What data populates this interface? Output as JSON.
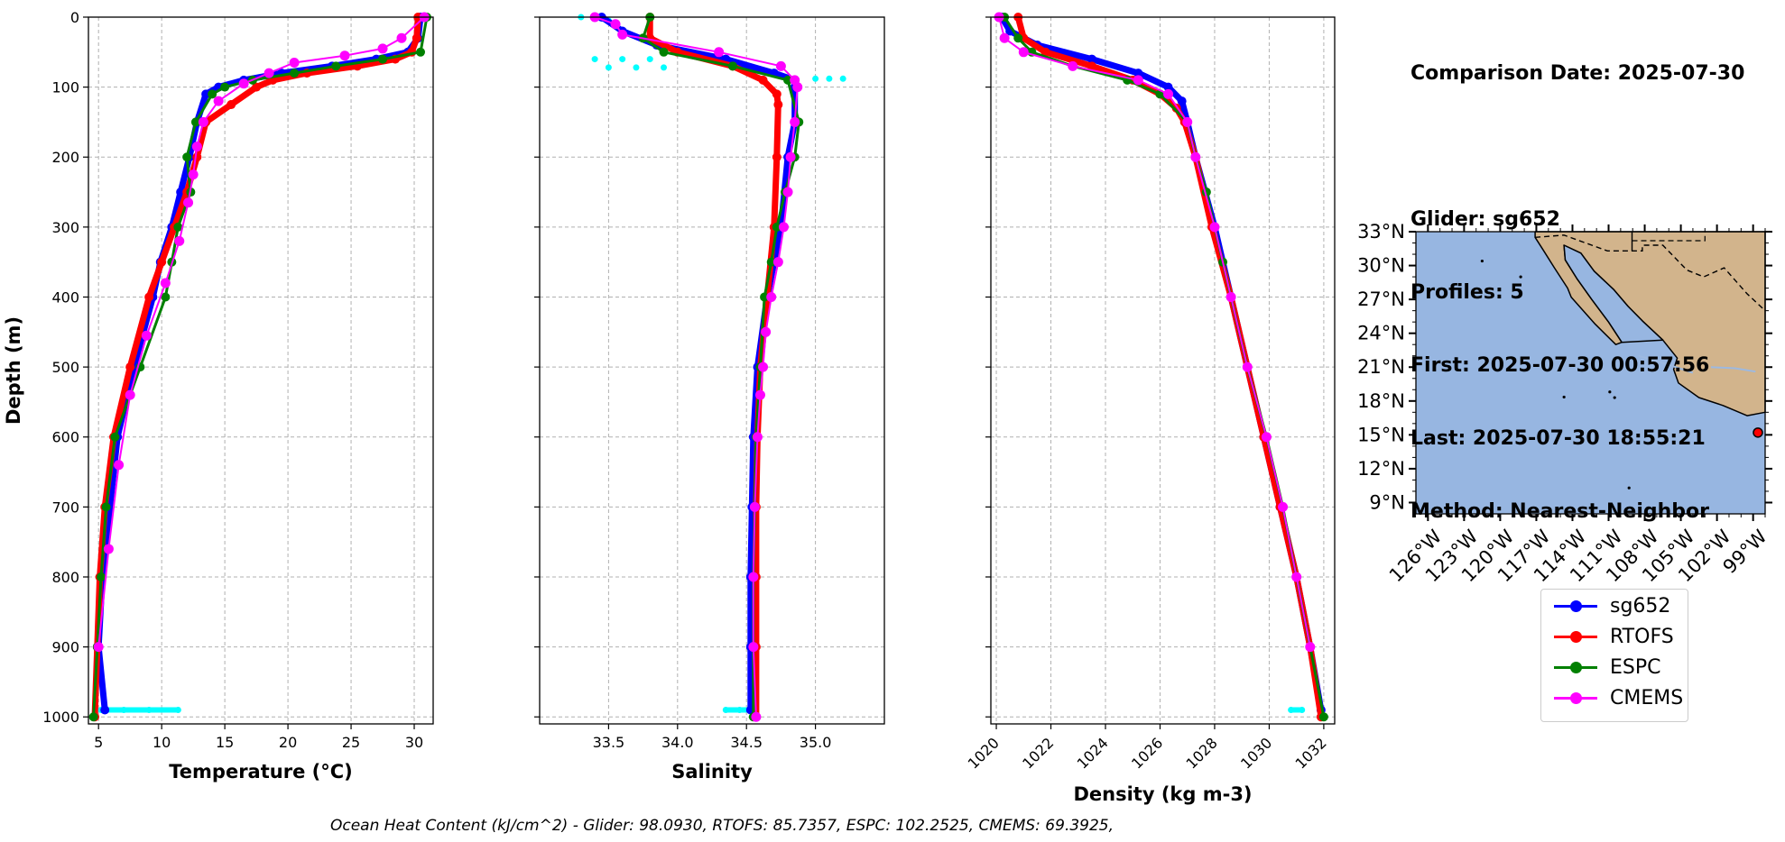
{
  "info": {
    "line1": "Comparison Date: 2025-07-30",
    "line2": "Glider: sg652",
    "line3": "Profiles: 5",
    "line4": "First: 2025-07-30 00:57:56",
    "line5": "Last: 2025-07-30 18:55:21",
    "line6": "Method: Nearest-Neighbor"
  },
  "caption": "Ocean Heat Content (kJ/cm^2) - Glider: 98.0930,  RTOFS: 85.7357,  ESPC: 102.2525,  CMEMS: 69.3925,",
  "legend": [
    {
      "name": "sg652",
      "color": "#0000ff"
    },
    {
      "name": "RTOFS",
      "color": "#ff0000"
    },
    {
      "name": "ESPC",
      "color": "#008000"
    },
    {
      "name": "CMEMS",
      "color": "#ff00ff"
    }
  ],
  "colors": {
    "glider_raw": "#00ffff",
    "ocean": "#97b6e1",
    "land": "#d2b48c"
  },
  "chart_data": [
    {
      "type": "line",
      "xlabel": "Temperature (°C)",
      "ylabel": "Depth (m)",
      "xlim": [
        4.2,
        31.5
      ],
      "ylim": [
        1010,
        0
      ],
      "xticks": [
        5,
        10,
        15,
        20,
        25,
        30
      ],
      "yticks": [
        0,
        100,
        200,
        300,
        400,
        500,
        600,
        700,
        800,
        900,
        1000
      ],
      "grid": true,
      "raw_points": [
        [
          5.2,
          990
        ],
        [
          7,
          990
        ],
        [
          9,
          990
        ],
        [
          11.3,
          990
        ]
      ],
      "series": [
        {
          "name": "sg652",
          "depth": [
            0,
            30,
            50,
            60,
            70,
            80,
            90,
            100,
            110,
            150,
            200,
            250,
            300,
            350,
            400,
            500,
            600,
            700,
            800,
            900,
            990
          ],
          "values": [
            30.5,
            30.3,
            29.5,
            27,
            23.5,
            19.5,
            16.5,
            14.5,
            13.5,
            12.8,
            12.2,
            11.5,
            10.8,
            9.9,
            9.3,
            7.8,
            6.5,
            5.9,
            5.3,
            5.0,
            5.5
          ]
        },
        {
          "name": "RTOFS",
          "depth": [
            0,
            30,
            50,
            60,
            70,
            80,
            90,
            100,
            125,
            150,
            200,
            250,
            300,
            350,
            400,
            500,
            600,
            700,
            800,
            900,
            1000
          ],
          "values": [
            30.3,
            30.2,
            29.8,
            28.5,
            25.5,
            21.5,
            18.8,
            17.5,
            15.5,
            13.5,
            12.8,
            12.0,
            11.0,
            10.0,
            9.0,
            7.5,
            6.2,
            5.5,
            5.1,
            4.9,
            4.7
          ]
        },
        {
          "name": "ESPC",
          "depth": [
            0,
            50,
            60,
            70,
            80,
            90,
            100,
            110,
            150,
            200,
            250,
            300,
            350,
            400,
            500,
            600,
            700,
            800,
            900,
            1000
          ],
          "values": [
            31.0,
            30.5,
            27.5,
            23.8,
            20.5,
            17.2,
            15.0,
            14.0,
            12.7,
            12.0,
            12.3,
            11.3,
            10.8,
            10.3,
            8.3,
            6.3,
            5.6,
            5.2,
            4.9,
            4.6
          ]
        },
        {
          "name": "CMEMS",
          "depth": [
            0,
            30,
            45,
            55,
            65,
            80,
            95,
            120,
            150,
            185,
            225,
            265,
            320,
            380,
            455,
            540,
            640,
            760,
            900
          ],
          "values": [
            30.8,
            29.0,
            27.5,
            24.5,
            20.5,
            18.5,
            16.5,
            14.5,
            13.3,
            12.8,
            12.5,
            12.1,
            11.4,
            10.3,
            8.8,
            7.5,
            6.6,
            5.8,
            5.0
          ]
        }
      ]
    },
    {
      "type": "line",
      "xlabel": "Salinity",
      "xlim": [
        33.0,
        35.5
      ],
      "ylim": [
        1010,
        0
      ],
      "xticks": [
        33.5,
        34.0,
        34.5,
        35.0
      ],
      "grid": true,
      "raw_points": [
        [
          33.4,
          60
        ],
        [
          33.6,
          60
        ],
        [
          33.8,
          60
        ],
        [
          33.5,
          72
        ],
        [
          33.7,
          72
        ],
        [
          33.9,
          72
        ],
        [
          35.0,
          88
        ],
        [
          35.1,
          88
        ],
        [
          35.2,
          88
        ],
        [
          34.35,
          990
        ],
        [
          34.45,
          990
        ],
        [
          34.52,
          990
        ],
        [
          33.3,
          0
        ],
        [
          33.5,
          5
        ]
      ],
      "series": [
        {
          "name": "sg652",
          "depth": [
            0,
            20,
            40,
            60,
            80,
            90,
            100,
            150,
            200,
            300,
            400,
            500,
            600,
            700,
            800,
            900,
            990
          ],
          "values": [
            33.45,
            33.6,
            33.85,
            34.35,
            34.7,
            34.85,
            34.85,
            34.85,
            34.8,
            34.75,
            34.65,
            34.58,
            34.55,
            34.54,
            34.53,
            34.53,
            34.53
          ]
        },
        {
          "name": "RTOFS",
          "depth": [
            0,
            30,
            50,
            70,
            90,
            110,
            125,
            200,
            300,
            400,
            500,
            600,
            700,
            800,
            900,
            1000
          ],
          "values": [
            33.8,
            33.8,
            34.0,
            34.4,
            34.62,
            34.72,
            34.73,
            34.72,
            34.7,
            34.65,
            34.6,
            34.58,
            34.57,
            34.57,
            34.57,
            34.57
          ]
        },
        {
          "name": "ESPC",
          "depth": [
            0,
            30,
            50,
            70,
            90,
            150,
            200,
            250,
            300,
            350,
            400,
            500,
            600,
            700,
            800,
            900,
            1000
          ],
          "values": [
            33.8,
            33.75,
            33.9,
            34.4,
            34.8,
            34.88,
            34.85,
            34.78,
            34.72,
            34.68,
            34.63,
            34.6,
            34.57,
            34.56,
            34.55,
            34.55,
            34.55
          ]
        },
        {
          "name": "CMEMS",
          "depth": [
            0,
            10,
            25,
            50,
            70,
            90,
            100,
            150,
            200,
            250,
            300,
            350,
            400,
            450,
            500,
            540,
            600,
            700,
            800,
            900,
            1000
          ],
          "values": [
            33.4,
            33.55,
            33.6,
            34.3,
            34.75,
            34.85,
            34.87,
            34.85,
            34.82,
            34.8,
            34.77,
            34.73,
            34.68,
            34.64,
            34.62,
            34.6,
            34.58,
            34.56,
            34.55,
            34.55,
            34.57
          ]
        }
      ]
    },
    {
      "type": "line",
      "xlabel": "Density (kg m-3)",
      "xlim": [
        1019.8,
        1032.4
      ],
      "ylim": [
        1010,
        0
      ],
      "xticks": [
        1020,
        1022,
        1024,
        1026,
        1028,
        1030,
        1032
      ],
      "grid": true,
      "raw_points": [
        [
          1022.5,
          50
        ],
        [
          1023.5,
          60
        ],
        [
          1030.8,
          990
        ],
        [
          1031.2,
          990
        ]
      ],
      "series": [
        {
          "name": "sg652",
          "depth": [
            0,
            20,
            40,
            60,
            80,
            100,
            120,
            150,
            200,
            300,
            400,
            500,
            600,
            700,
            800,
            900,
            990
          ],
          "values": [
            1020.2,
            1020.5,
            1021.5,
            1023.5,
            1025.2,
            1026.3,
            1026.8,
            1027.0,
            1027.3,
            1028.0,
            1028.6,
            1029.2,
            1029.8,
            1030.4,
            1031.0,
            1031.5,
            1031.9
          ]
        },
        {
          "name": "RTOFS",
          "depth": [
            0,
            30,
            50,
            70,
            90,
            110,
            130,
            150,
            200,
            300,
            400,
            500,
            600,
            700,
            800,
            900,
            1000
          ],
          "values": [
            1020.8,
            1021.0,
            1021.8,
            1023.5,
            1025.0,
            1026.0,
            1026.6,
            1026.9,
            1027.3,
            1027.9,
            1028.6,
            1029.2,
            1029.8,
            1030.4,
            1031.0,
            1031.5,
            1031.9
          ]
        },
        {
          "name": "ESPC",
          "depth": [
            0,
            30,
            50,
            70,
            90,
            110,
            150,
            200,
            250,
            300,
            350,
            400,
            500,
            600,
            700,
            800,
            900,
            1000
          ],
          "values": [
            1020.3,
            1020.8,
            1021.3,
            1022.8,
            1024.8,
            1026.0,
            1027.0,
            1027.3,
            1027.7,
            1028.0,
            1028.3,
            1028.6,
            1029.2,
            1029.9,
            1030.5,
            1031.0,
            1031.5,
            1032.0
          ]
        },
        {
          "name": "CMEMS",
          "depth": [
            0,
            30,
            50,
            70,
            90,
            110,
            150,
            200,
            300,
            400,
            500,
            600,
            700,
            800,
            900
          ],
          "values": [
            1020.1,
            1020.3,
            1021.0,
            1022.8,
            1025.2,
            1026.3,
            1027.0,
            1027.3,
            1028.0,
            1028.6,
            1029.2,
            1029.9,
            1030.5,
            1031.0,
            1031.5
          ]
        }
      ]
    },
    {
      "type": "map",
      "lat_labels": [
        "33°N",
        "30°N",
        "27°N",
        "24°N",
        "21°N",
        "18°N",
        "15°N",
        "12°N",
        "9°N"
      ],
      "lat_values": [
        33,
        30,
        27,
        24,
        21,
        18,
        15,
        12,
        9
      ],
      "lon_labels": [
        "126°W",
        "123°W",
        "120°W",
        "117°W",
        "114°W",
        "111°W",
        "108°W",
        "105°W",
        "102°W",
        "99°W"
      ],
      "lon_values": [
        -126,
        -123,
        -120,
        -117,
        -114,
        -111,
        -108,
        -105,
        -102,
        -99
      ],
      "lon_range": [
        -127,
        -98
      ],
      "lat_range": [
        8,
        33
      ],
      "glider_position": {
        "lon": -98.6,
        "lat": 15.2
      }
    }
  ]
}
